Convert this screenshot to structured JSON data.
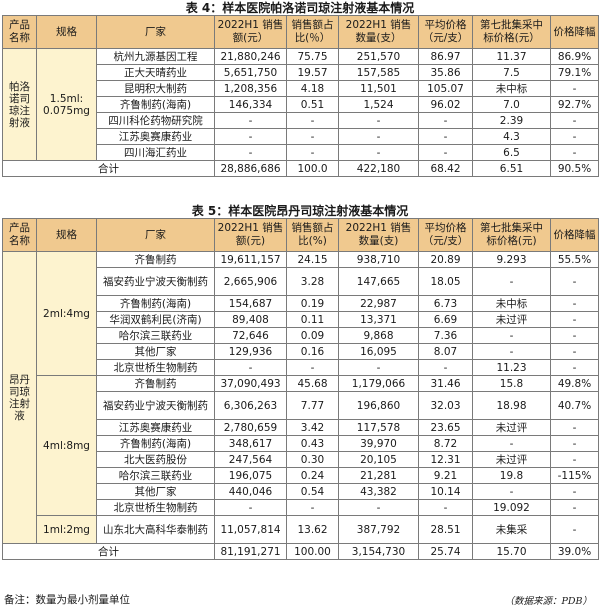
{
  "table4": {
    "caption": "表 4：样本医院帕洛诺司琼注射液基本情况",
    "headers": {
      "product": "产品名称",
      "spec": "规格",
      "firm": "厂家",
      "sales": "2022H1 销售额(元）",
      "share": "销售额占比(％）",
      "qty": "2022H1 销售数量(支）",
      "avg_price": "平均价格（元/支）",
      "batch7": "第七批集采中标价格(元）",
      "drop": "价格降幅"
    },
    "product": "帕洛诺司琼注射液",
    "spec": "1.5ml: 0.075mg",
    "rows": [
      {
        "firm": "杭州九源基因工程",
        "sales": "21,880,246",
        "share": "75.75",
        "qty": "251,570",
        "avg": "86.97",
        "batch": "11.37",
        "drop": "86.9%"
      },
      {
        "firm": "正大天晴药业",
        "sales": "5,651,750",
        "share": "19.57",
        "qty": "157,585",
        "avg": "35.86",
        "batch": "7.5",
        "drop": "79.1%"
      },
      {
        "firm": "昆明积大制药",
        "sales": "1,208,356",
        "share": "4.18",
        "qty": "11,501",
        "avg": "105.07",
        "batch": "未中标",
        "drop": "-"
      },
      {
        "firm": "齐鲁制药(海南)",
        "sales": "146,334",
        "share": "0.51",
        "qty": "1,524",
        "avg": "96.02",
        "batch": "7.0",
        "drop": "92.7%"
      },
      {
        "firm": "四川科伦药物研究院",
        "sales": "-",
        "share": "-",
        "qty": "-",
        "avg": "-",
        "batch": "2.39",
        "drop": "-"
      },
      {
        "firm": "江苏奥赛康药业",
        "sales": "-",
        "share": "-",
        "qty": "-",
        "avg": "-",
        "batch": "4.3",
        "drop": "-"
      },
      {
        "firm": "四川海汇药业",
        "sales": "-",
        "share": "-",
        "qty": "-",
        "avg": "-",
        "batch": "6.5",
        "drop": "-"
      }
    ],
    "total": {
      "label": "合计",
      "sales": "28,886,686",
      "share": "100.0",
      "qty": "422,180",
      "avg": "68.42",
      "batch": "6.51",
      "drop": "90.5%"
    }
  },
  "table5": {
    "caption": "表 5：样本医院昂丹司琼注射液基本情况",
    "headers": {
      "product": "产品名称",
      "spec": "规格",
      "firm": "厂家",
      "sales": "2022H1 销售额(元)",
      "share": "销售额占比(%)",
      "qty": "2022H1 销售数量(支)",
      "avg_price": "平均价格（元/支）",
      "batch7": "第七批集采中标价格(元)",
      "drop": "价格降幅"
    },
    "product": "昂丹司琼注射液",
    "groups": [
      {
        "spec": "2ml:4mg",
        "rows": [
          {
            "firm": "齐鲁制药",
            "sales": "19,611,157",
            "share": "24.15",
            "qty": "938,710",
            "avg": "20.89",
            "batch": "9.293",
            "drop": "55.5%"
          },
          {
            "firm": "福安药业宁波天衡制药",
            "sales": "2,665,906",
            "share": "3.28",
            "qty": "147,665",
            "avg": "18.05",
            "batch": "-",
            "drop": "-"
          },
          {
            "firm": "齐鲁制药(海南)",
            "sales": "154,687",
            "share": "0.19",
            "qty": "22,987",
            "avg": "6.73",
            "batch": "未中标",
            "drop": "-"
          },
          {
            "firm": "华润双鹤利民(济南)",
            "sales": "89,408",
            "share": "0.11",
            "qty": "13,371",
            "avg": "6.69",
            "batch": "未过评",
            "drop": "-"
          },
          {
            "firm": "哈尔滨三联药业",
            "sales": "72,646",
            "share": "0.09",
            "qty": "9,868",
            "avg": "7.36",
            "batch": "-",
            "drop": "-"
          },
          {
            "firm": "其他厂家",
            "sales": "129,936",
            "share": "0.16",
            "qty": "16,095",
            "avg": "8.07",
            "batch": "-",
            "drop": "-"
          },
          {
            "firm": "北京世桥生物制药",
            "sales": "-",
            "share": "-",
            "qty": "-",
            "avg": "-",
            "batch": "11.23",
            "drop": "-"
          }
        ]
      },
      {
        "spec": "4ml:8mg",
        "rows": [
          {
            "firm": "齐鲁制药",
            "sales": "37,090,493",
            "share": "45.68",
            "qty": "1,179,066",
            "avg": "31.46",
            "batch": "15.8",
            "drop": "49.8%"
          },
          {
            "firm": "福安药业宁波天衡制药",
            "sales": "6,306,263",
            "share": "7.77",
            "qty": "196,860",
            "avg": "32.03",
            "batch": "18.98",
            "drop": "40.7%"
          },
          {
            "firm": "江苏奥赛康药业",
            "sales": "2,780,659",
            "share": "3.42",
            "qty": "117,578",
            "avg": "23.65",
            "batch": "未过评",
            "drop": "-"
          },
          {
            "firm": "齐鲁制药(海南)",
            "sales": "348,617",
            "share": "0.43",
            "qty": "39,970",
            "avg": "8.72",
            "batch": "-",
            "drop": "-"
          },
          {
            "firm": "北大医药股份",
            "sales": "247,564",
            "share": "0.30",
            "qty": "20,105",
            "avg": "12.31",
            "batch": "未过评",
            "drop": "-"
          },
          {
            "firm": "哈尔滨三联药业",
            "sales": "196,075",
            "share": "0.24",
            "qty": "21,281",
            "avg": "9.21",
            "batch": "19.8",
            "drop": "-115%"
          },
          {
            "firm": "其他厂家",
            "sales": "440,046",
            "share": "0.54",
            "qty": "43,382",
            "avg": "10.14",
            "batch": "-",
            "drop": "-"
          },
          {
            "firm": "北京世桥生物制药",
            "sales": "-",
            "share": "-",
            "qty": "-",
            "avg": "-",
            "batch": "19.092",
            "drop": "-"
          }
        ]
      },
      {
        "spec": "1ml:2mg",
        "rows": [
          {
            "firm": "山东北大高科华泰制药",
            "sales": "11,057,814",
            "share": "13.62",
            "qty": "387,792",
            "avg": "28.51",
            "batch": "未集采",
            "drop": "-"
          }
        ]
      }
    ],
    "total": {
      "label": "合计",
      "sales": "81,191,271",
      "share": "100.00",
      "qty": "3,154,730",
      "avg": "25.74",
      "batch": "15.70",
      "drop": "39.0%"
    }
  },
  "footer": {
    "note": "备注：数量为最小剂量单位",
    "source": "（数据来源：PDB）"
  }
}
